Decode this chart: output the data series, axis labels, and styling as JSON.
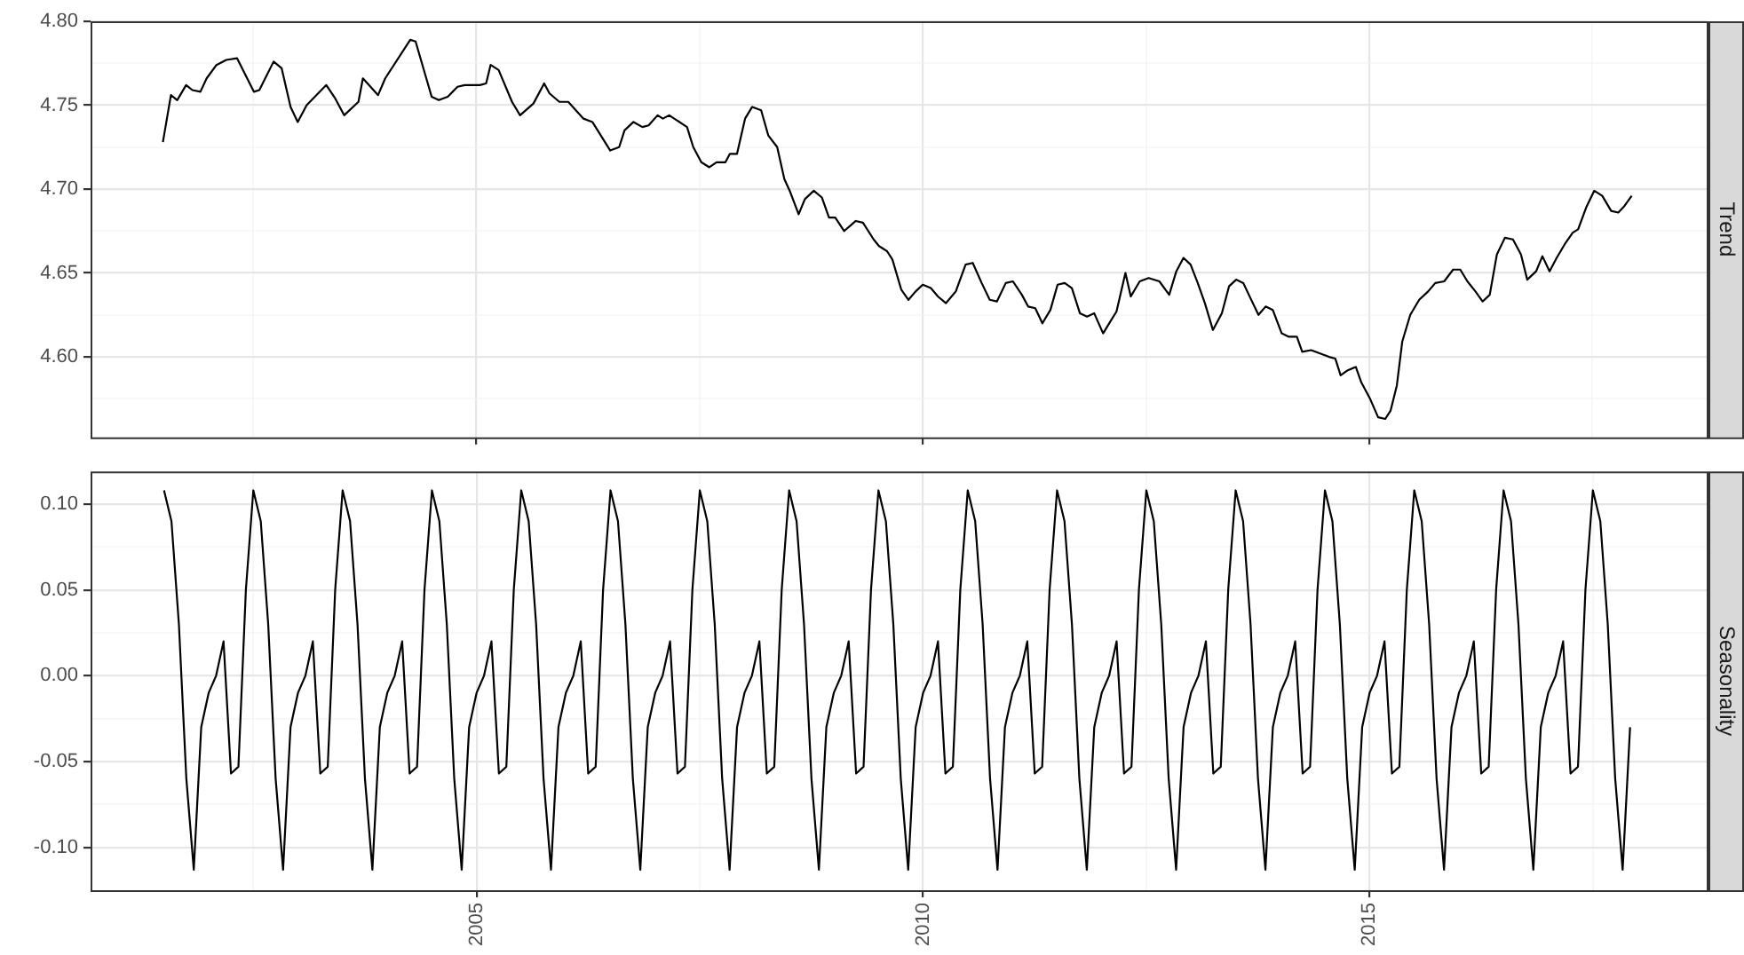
{
  "chart_data": [
    {
      "type": "line",
      "title": "Trend",
      "grid": true,
      "tick_labels": "y",
      "marker": "none",
      "line_style": "solid",
      "xlim": [
        2000.68,
        2018.78
      ],
      "xticks": [
        {
          "value": 2002.5,
          "label": null
        },
        2005,
        {
          "value": 2007.5,
          "label": null
        },
        2010,
        {
          "value": 2012.5,
          "label": null
        },
        2015,
        {
          "value": 2017.5,
          "label": null
        }
      ],
      "ylim": [
        4.552,
        4.8
      ],
      "yticks": [
        {
          "value": 4.575,
          "label": null
        },
        {
          "value": 4.6,
          "label": "4.60"
        },
        {
          "value": 4.625,
          "label": null
        },
        {
          "value": 4.65,
          "label": "4.65"
        },
        {
          "value": 4.675,
          "label": null
        },
        {
          "value": 4.7,
          "label": "4.70"
        },
        {
          "value": 4.725,
          "label": null
        },
        {
          "value": 4.75,
          "label": "4.75"
        },
        {
          "value": 4.775,
          "label": null
        },
        {
          "value": 4.8,
          "label": "4.80"
        }
      ],
      "x": [
        2001.49,
        2001.58,
        2001.65,
        2001.75,
        2001.82,
        2001.91,
        2001.98,
        2002.09,
        2002.2,
        2002.32,
        2002.51,
        2002.57,
        2002.73,
        2002.82,
        2002.92,
        2003.0,
        2003.1,
        2003.32,
        2003.42,
        2003.52,
        2003.68,
        2003.73,
        2003.9,
        2003.98,
        2004.26,
        2004.32,
        2004.5,
        2004.58,
        2004.68,
        2004.79,
        2004.87,
        2005.04,
        2005.11,
        2005.16,
        2005.25,
        2005.4,
        2005.49,
        2005.64,
        2005.76,
        2005.82,
        2005.93,
        2006.03,
        2006.2,
        2006.3,
        2006.5,
        2006.6,
        2006.66,
        2006.76,
        2006.86,
        2006.93,
        2007.03,
        2007.09,
        2007.16,
        2007.36,
        2007.43,
        2007.52,
        2007.61,
        2007.69,
        2007.79,
        2007.84,
        2007.92,
        2008.01,
        2008.09,
        2008.19,
        2008.27,
        2008.37,
        2008.45,
        2008.51,
        2008.61,
        2008.68,
        2008.78,
        2008.87,
        2008.95,
        2009.02,
        2009.12,
        2009.25,
        2009.33,
        2009.45,
        2009.51,
        2009.6,
        2009.66,
        2009.76,
        2009.84,
        2009.92,
        2010.0,
        2010.09,
        2010.17,
        2010.26,
        2010.37,
        2010.48,
        2010.56,
        2010.66,
        2010.75,
        2010.83,
        2010.93,
        2011.01,
        2011.11,
        2011.18,
        2011.26,
        2011.34,
        2011.43,
        2011.51,
        2011.59,
        2011.67,
        2011.76,
        2011.84,
        2011.92,
        2012.02,
        2012.1,
        2012.17,
        2012.27,
        2012.33,
        2012.43,
        2012.53,
        2012.65,
        2012.76,
        2012.84,
        2012.92,
        2013.0,
        2013.08,
        2013.16,
        2013.25,
        2013.35,
        2013.43,
        2013.51,
        2013.59,
        2013.67,
        2013.76,
        2013.84,
        2013.92,
        2014.02,
        2014.1,
        2014.19,
        2014.25,
        2014.35,
        2014.45,
        2014.55,
        2014.62,
        2014.68,
        2014.76,
        2014.85,
        2014.91,
        2015.01,
        2015.1,
        2015.18,
        2015.24,
        2015.31,
        2015.37,
        2015.46,
        2015.56,
        2015.66,
        2015.74,
        2015.84,
        2015.94,
        2016.02,
        2016.1,
        2016.19,
        2016.27,
        2016.35,
        2016.43,
        2016.52,
        2016.61,
        2016.7,
        2016.77,
        2016.87,
        2016.94,
        2017.02,
        2017.1,
        2017.2,
        2017.28,
        2017.34,
        2017.43,
        2017.52,
        2017.61,
        2017.71,
        2017.79,
        2017.86,
        2017.94
      ],
      "series": [
        {
          "color": "#000000",
          "values": [
            4.728,
            4.756,
            4.753,
            4.762,
            4.759,
            4.758,
            4.766,
            4.774,
            4.777,
            4.778,
            4.758,
            4.759,
            4.776,
            4.772,
            4.749,
            4.74,
            4.75,
            4.762,
            4.754,
            4.744,
            4.752,
            4.766,
            4.756,
            4.766,
            4.789,
            4.788,
            4.755,
            4.753,
            4.755,
            4.761,
            4.762,
            4.762,
            4.763,
            4.774,
            4.771,
            4.752,
            4.744,
            4.751,
            4.763,
            4.757,
            4.752,
            4.752,
            4.742,
            4.74,
            4.723,
            4.725,
            4.735,
            4.74,
            4.737,
            4.738,
            4.744,
            4.742,
            4.744,
            4.737,
            4.725,
            4.716,
            4.713,
            4.716,
            4.716,
            4.721,
            4.721,
            4.742,
            4.749,
            4.747,
            4.732,
            4.725,
            4.706,
            4.699,
            4.685,
            4.694,
            4.699,
            4.695,
            4.683,
            4.683,
            4.675,
            4.681,
            4.68,
            4.67,
            4.666,
            4.663,
            4.658,
            4.64,
            4.634,
            4.639,
            4.643,
            4.641,
            4.636,
            4.632,
            4.639,
            4.655,
            4.656,
            4.644,
            4.634,
            4.633,
            4.644,
            4.645,
            4.637,
            4.63,
            4.629,
            4.62,
            4.628,
            4.643,
            4.644,
            4.641,
            4.626,
            4.624,
            4.626,
            4.614,
            4.621,
            4.627,
            4.65,
            4.636,
            4.645,
            4.647,
            4.645,
            4.637,
            4.651,
            4.659,
            4.655,
            4.644,
            4.632,
            4.616,
            4.626,
            4.642,
            4.646,
            4.644,
            4.635,
            4.625,
            4.63,
            4.628,
            4.614,
            4.612,
            4.612,
            4.603,
            4.604,
            4.602,
            4.6,
            4.599,
            4.589,
            4.592,
            4.594,
            4.585,
            4.575,
            4.564,
            4.563,
            4.568,
            4.583,
            4.609,
            4.625,
            4.634,
            4.639,
            4.644,
            4.645,
            4.652,
            4.652,
            4.645,
            4.639,
            4.633,
            4.637,
            4.661,
            4.671,
            4.67,
            4.661,
            4.646,
            4.651,
            4.66,
            4.651,
            4.659,
            4.668,
            4.674,
            4.676,
            4.689,
            4.699,
            4.696,
            4.687,
            4.686,
            4.69,
            4.696
          ]
        }
      ]
    },
    {
      "type": "line",
      "title": "Seasonality",
      "grid": true,
      "marker": "none",
      "line_style": "solid",
      "xlim": [
        "2000-09-05",
        "2018-10-10"
      ],
      "xticks": [
        {
          "value": "2002-07",
          "label": null
        },
        "2005",
        {
          "value": "2007-07",
          "label": null
        },
        "2010",
        {
          "value": "2012-07",
          "label": null
        },
        "2015",
        {
          "value": "2017-07",
          "label": null
        }
      ],
      "ylim": [
        -0.125,
        0.119
      ],
      "yticks": [
        {
          "value": -0.1,
          "label": "-0.10"
        },
        {
          "value": -0.075,
          "label": null
        },
        {
          "value": -0.05,
          "label": "-0.05"
        },
        {
          "value": -0.025,
          "label": null
        },
        {
          "value": 0,
          "label": "0.00"
        },
        {
          "value": 0.025,
          "label": null
        },
        {
          "value": 0.05,
          "label": "0.05"
        },
        {
          "value": 0.075,
          "label": null
        },
        {
          "value": 0.1,
          "label": "0.10"
        }
      ],
      "x": [
        "2001-07",
        "2001-08",
        "2001-09",
        "2001-10",
        "2001-11",
        "2001-12",
        "2002-01",
        "2002-02",
        "2002-03",
        "2002-04",
        "2002-05",
        "2002-06",
        "2002-07",
        "2002-08",
        "2002-09",
        "2002-10",
        "2002-11",
        "2002-12",
        "2003-01",
        "2003-02",
        "2003-03",
        "2003-04",
        "2003-05",
        "2003-06",
        "2003-07",
        "2003-08",
        "2003-09",
        "2003-10",
        "2003-11",
        "2003-12",
        "2004-01",
        "2004-02",
        "2004-03",
        "2004-04",
        "2004-05",
        "2004-06",
        "2004-07",
        "2004-08",
        "2004-09",
        "2004-10",
        "2004-11",
        "2004-12",
        "2005-01",
        "2005-02",
        "2005-03",
        "2005-04",
        "2005-05",
        "2005-06",
        "2005-07",
        "2005-08",
        "2005-09",
        "2005-10",
        "2005-11",
        "2005-12",
        "2006-01",
        "2006-02",
        "2006-03",
        "2006-04",
        "2006-05",
        "2006-06",
        "2006-07",
        "2006-08",
        "2006-09",
        "2006-10",
        "2006-11",
        "2006-12",
        "2007-01",
        "2007-02",
        "2007-03",
        "2007-04",
        "2007-05",
        "2007-06",
        "2007-07",
        "2007-08",
        "2007-09",
        "2007-10",
        "2007-11",
        "2007-12",
        "2008-01",
        "2008-02",
        "2008-03",
        "2008-04",
        "2008-05",
        "2008-06",
        "2008-07",
        "2008-08",
        "2008-09",
        "2008-10",
        "2008-11",
        "2008-12",
        "2009-01",
        "2009-02",
        "2009-03",
        "2009-04",
        "2009-05",
        "2009-06",
        "2009-07",
        "2009-08",
        "2009-09",
        "2009-10",
        "2009-11",
        "2009-12",
        "2010-01",
        "2010-02",
        "2010-03",
        "2010-04",
        "2010-05",
        "2010-06",
        "2010-07",
        "2010-08",
        "2010-09",
        "2010-10",
        "2010-11",
        "2010-12",
        "2011-01",
        "2011-02",
        "2011-03",
        "2011-04",
        "2011-05",
        "2011-06",
        "2011-07",
        "2011-08",
        "2011-09",
        "2011-10",
        "2011-11",
        "2011-12",
        "2012-01",
        "2012-02",
        "2012-03",
        "2012-04",
        "2012-05",
        "2012-06",
        "2012-07",
        "2012-08",
        "2012-09",
        "2012-10",
        "2012-11",
        "2012-12",
        "2013-01",
        "2013-02",
        "2013-03",
        "2013-04",
        "2013-05",
        "2013-06",
        "2013-07",
        "2013-08",
        "2013-09",
        "2013-10",
        "2013-11",
        "2013-12",
        "2014-01",
        "2014-02",
        "2014-03",
        "2014-04",
        "2014-05",
        "2014-06",
        "2014-07",
        "2014-08",
        "2014-09",
        "2014-10",
        "2014-11",
        "2014-12",
        "2015-01",
        "2015-02",
        "2015-03",
        "2015-04",
        "2015-05",
        "2015-06",
        "2015-07",
        "2015-08",
        "2015-09",
        "2015-10",
        "2015-11",
        "2015-12",
        "2016-01",
        "2016-02",
        "2016-03",
        "2016-04",
        "2016-05",
        "2016-06",
        "2016-07",
        "2016-08",
        "2016-09",
        "2016-10",
        "2016-11",
        "2016-12",
        "2017-01",
        "2017-02",
        "2017-03",
        "2017-04",
        "2017-05",
        "2017-06",
        "2017-07",
        "2017-08",
        "2017-09",
        "2017-10",
        "2017-11",
        "2017-12"
      ],
      "series": [
        {
          "color": "#000000",
          "values": [
            0.108,
            0.09,
            0.03,
            -0.06,
            -0.113,
            -0.03,
            -0.01,
            0,
            0.02,
            -0.057,
            -0.053,
            0.05,
            0.108,
            0.09,
            0.03,
            -0.06,
            -0.113,
            -0.03,
            -0.01,
            0,
            0.02,
            -0.057,
            -0.053,
            0.05,
            0.108,
            0.09,
            0.03,
            -0.06,
            -0.113,
            -0.03,
            -0.01,
            0,
            0.02,
            -0.057,
            -0.053,
            0.05,
            0.108,
            0.09,
            0.03,
            -0.06,
            -0.113,
            -0.03,
            -0.01,
            0,
            0.02,
            -0.057,
            -0.053,
            0.05,
            0.108,
            0.09,
            0.03,
            -0.06,
            -0.113,
            -0.03,
            -0.01,
            0,
            0.02,
            -0.057,
            -0.053,
            0.05,
            0.108,
            0.09,
            0.03,
            -0.06,
            -0.113,
            -0.03,
            -0.01,
            0,
            0.02,
            -0.057,
            -0.053,
            0.05,
            0.108,
            0.09,
            0.03,
            -0.06,
            -0.113,
            -0.03,
            -0.01,
            0,
            0.02,
            -0.057,
            -0.053,
            0.05,
            0.108,
            0.09,
            0.03,
            -0.06,
            -0.113,
            -0.03,
            -0.01,
            0,
            0.02,
            -0.057,
            -0.053,
            0.05,
            0.108,
            0.09,
            0.03,
            -0.06,
            -0.113,
            -0.03,
            -0.01,
            0,
            0.02,
            -0.057,
            -0.053,
            0.05,
            0.108,
            0.09,
            0.03,
            -0.06,
            -0.113,
            -0.03,
            -0.01,
            0,
            0.02,
            -0.057,
            -0.053,
            0.05,
            0.108,
            0.09,
            0.03,
            -0.06,
            -0.113,
            -0.03,
            -0.01,
            0,
            0.02,
            -0.057,
            -0.053,
            0.05,
            0.108,
            0.09,
            0.03,
            -0.06,
            -0.113,
            -0.03,
            -0.01,
            0,
            0.02,
            -0.057,
            -0.053,
            0.05,
            0.108,
            0.09,
            0.03,
            -0.06,
            -0.113,
            -0.03,
            -0.01,
            0,
            0.02,
            -0.057,
            -0.053,
            0.05,
            0.108,
            0.09,
            0.03,
            -0.06,
            -0.113,
            -0.03,
            -0.01,
            0,
            0.02,
            -0.057,
            -0.053,
            0.05,
            0.108,
            0.09,
            0.03,
            -0.06,
            -0.113,
            -0.03,
            -0.01,
            0,
            0.02,
            -0.057,
            -0.053,
            0.05,
            0.108,
            0.09,
            0.03,
            -0.06,
            -0.113,
            -0.03,
            -0.01,
            0,
            0.02,
            -0.057,
            -0.053,
            0.05,
            0.108,
            0.09,
            0.03,
            -0.06,
            -0.113,
            -0.03
          ]
        }
      ]
    }
  ]
}
